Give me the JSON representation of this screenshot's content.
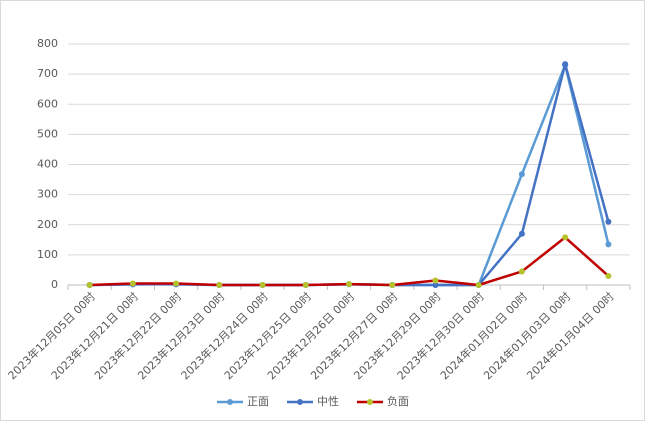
{
  "chart_data": {
    "type": "line",
    "categories": [
      "2023年12月05日 00时",
      "2023年12月21日 00时",
      "2023年12月22日 00时",
      "2023年12月23日 00时",
      "2023年12月24日 00时",
      "2023年12月25日 00时",
      "2023年12月26日 00时",
      "2023年12月27日 00时",
      "2023年12月29日 00时",
      "2023年12月30日 00时",
      "2024年01月02日 00时",
      "2024年01月03日 00时",
      "2024年01月04日 00时"
    ],
    "series": [
      {
        "name": "正面",
        "color": "#5b9bd5",
        "marker_color": "#5b9bd5",
        "values": [
          0,
          3,
          2,
          0,
          0,
          0,
          2,
          0,
          0,
          0,
          368,
          730,
          135
        ]
      },
      {
        "name": "中性",
        "color": "#4472c4",
        "marker_color": "#4472c4",
        "values": [
          0,
          2,
          3,
          0,
          0,
          0,
          3,
          0,
          0,
          0,
          170,
          733,
          210
        ]
      },
      {
        "name": "负面",
        "color": "#c00000",
        "marker_color": "#b5c22c",
        "values": [
          0,
          5,
          5,
          0,
          0,
          0,
          3,
          0,
          15,
          0,
          45,
          158,
          30
        ]
      }
    ],
    "ylim": [
      0,
      800
    ],
    "yticks": [
      0,
      100,
      200,
      300,
      400,
      500,
      600,
      700,
      800
    ],
    "grid": true,
    "legend": "bottom"
  }
}
